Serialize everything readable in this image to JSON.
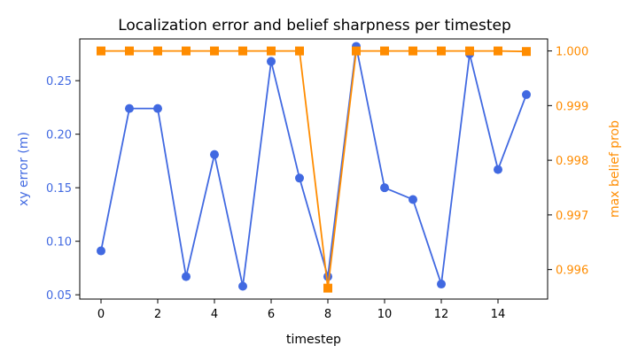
{
  "chart_data": {
    "type": "line",
    "title": "Localization error and belief sharpness per timestep",
    "xlabel": "timestep",
    "xlim": [
      -0.75,
      15.75
    ],
    "xticks": [
      0,
      2,
      4,
      6,
      8,
      10,
      12,
      14
    ],
    "grid": false,
    "x": [
      0,
      1,
      2,
      3,
      4,
      5,
      6,
      7,
      8,
      9,
      10,
      11,
      12,
      13,
      14,
      15
    ],
    "series": [
      {
        "name": "",
        "axis": "left",
        "ylabel": "xy error (m)",
        "color": "#4169e1",
        "marker": "circle",
        "ylim": [
          0.046,
          0.289
        ],
        "yticks": [
          0.05,
          0.1,
          0.15,
          0.2,
          0.25
        ],
        "ytick_labels": [
          "0.05",
          "0.10",
          "0.15",
          "0.20",
          "0.25"
        ],
        "values": [
          0.091,
          0.224,
          0.224,
          0.067,
          0.181,
          0.058,
          0.268,
          0.159,
          0.067,
          0.282,
          0.15,
          0.139,
          0.06,
          0.275,
          0.167,
          0.237
        ]
      },
      {
        "name": "",
        "axis": "right",
        "ylabel": "max belief prob",
        "color": "#ff8c00",
        "marker": "square",
        "ylim": [
          0.99546,
          1.00022
        ],
        "yticks": [
          0.996,
          0.997,
          0.998,
          0.999,
          1.0
        ],
        "ytick_labels": [
          "0.996",
          "0.997",
          "0.998",
          "0.999",
          "1.000"
        ],
        "values": [
          1.0,
          1.0,
          1.0,
          1.0,
          1.0,
          1.0,
          1.0,
          1.0,
          0.99566,
          1.0,
          1.0,
          1.0,
          1.0,
          1.0,
          1.0,
          0.99999
        ]
      }
    ]
  }
}
